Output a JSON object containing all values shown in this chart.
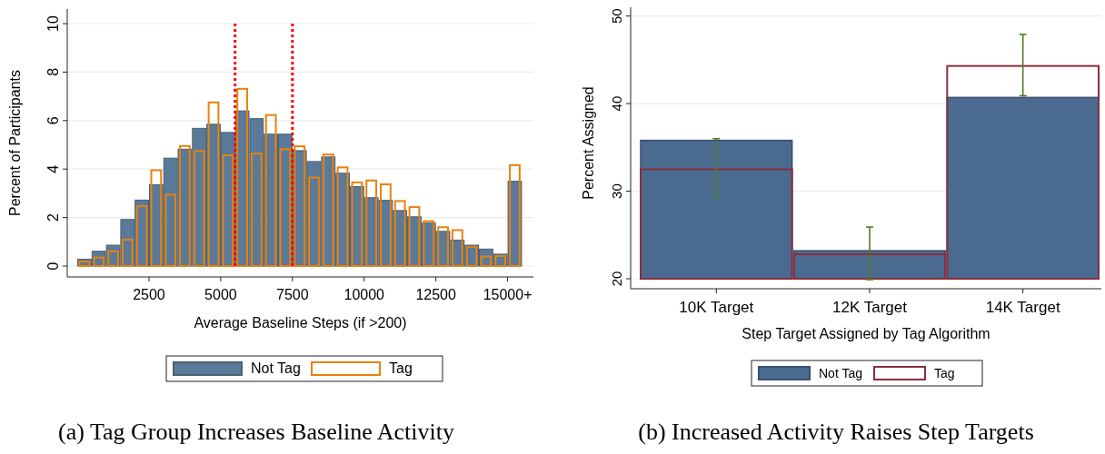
{
  "chart_data": [
    {
      "type": "histogram",
      "title": "(a) Tag Group Increases Baseline Activity",
      "xlabel": "Average Baseline Steps (if >200)",
      "ylabel": "Percent of Participants",
      "bins": [
        0,
        500,
        1000,
        1500,
        2000,
        2500,
        3000,
        3500,
        4000,
        4500,
        5000,
        5500,
        6000,
        6500,
        7000,
        7500,
        8000,
        8500,
        9000,
        9500,
        10000,
        10500,
        11000,
        11500,
        12000,
        12500,
        13000,
        13500,
        14000,
        14500,
        15000,
        15500
      ],
      "series": [
        {
          "name": "Not Tag",
          "color": "#5b7a99",
          "values": [
            0.28,
            0.61,
            0.86,
            1.92,
            2.72,
            3.35,
            4.45,
            4.82,
            5.68,
            5.85,
            5.51,
            6.4,
            6.08,
            5.44,
            5.44,
            4.76,
            4.31,
            4.5,
            3.83,
            3.28,
            2.82,
            2.71,
            2.29,
            2.03,
            1.77,
            1.43,
            1.07,
            0.86,
            0.7,
            0.49,
            3.5
          ]
        },
        {
          "name": "Tag",
          "color": "#e8820c",
          "values": [
            0.19,
            0.35,
            0.61,
            1.09,
            2.47,
            3.95,
            2.94,
            4.95,
            4.74,
            6.75,
            4.57,
            7.31,
            4.64,
            6.23,
            4.82,
            4.94,
            3.65,
            4.6,
            4.07,
            3.45,
            3.53,
            3.37,
            2.68,
            2.43,
            1.85,
            1.6,
            1.48,
            0.79,
            0.39,
            0.41,
            4.16
          ]
        }
      ],
      "xlim": [
        -350,
        15900
      ],
      "xticks": [
        2500,
        5000,
        7500,
        10000,
        12500,
        {
          "value": 15000,
          "label": "15000+"
        }
      ],
      "ylim": [
        -0.45,
        10.6
      ],
      "yticks": [
        0,
        2,
        4,
        6,
        8,
        10
      ],
      "ref_lines": [
        {
          "axis": "x",
          "value": 5500,
          "color": "#ff0000",
          "line_style": "dotted"
        },
        {
          "axis": "x",
          "value": 7500,
          "color": "#ff0000",
          "line_style": "dotted"
        }
      ],
      "grid": "y",
      "legend": "bottom"
    },
    {
      "type": "bar",
      "title": "(b) Increased Activity Raises Step Targets",
      "xlabel": "Step Target Assigned by Tag Algorithm",
      "ylabel": "Percent Assigned",
      "categories": [
        "10K Target",
        "12K Target",
        "14K Target"
      ],
      "series": [
        {
          "name": "Not Tag",
          "color": "#4a6b8f",
          "values": [
            35.8,
            23.2,
            40.7
          ]
        },
        {
          "name": "Tag",
          "color": "#8b2e3e",
          "values": [
            32.5,
            22.8,
            44.3
          ],
          "errors": [
            [
              29.3,
              36.0
            ],
            [
              19.9,
              25.9
            ],
            [
              40.9,
              47.9
            ]
          ]
        }
      ],
      "ylim": [
        20,
        51
      ],
      "yticks": [
        20,
        30,
        40,
        50
      ],
      "grid": "y",
      "legend": "bottom"
    }
  ]
}
